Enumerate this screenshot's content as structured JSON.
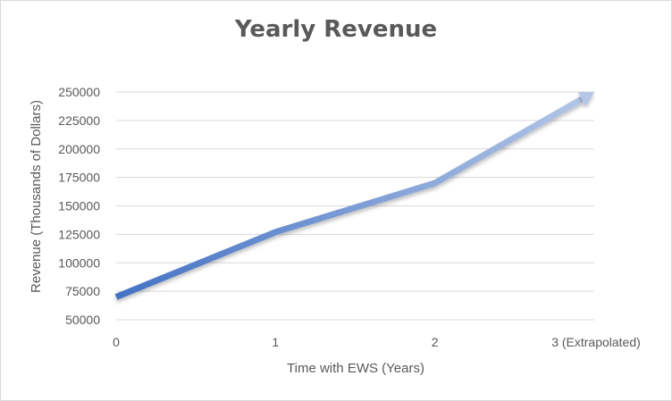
{
  "chart_data": {
    "type": "line",
    "title": "Yearly Revenue",
    "xlabel": "Time with EWS (Years)",
    "ylabel": "Revenue (Thousands of Dollars)",
    "categories": [
      "0",
      "1",
      "2",
      "3 (Extrapolated)"
    ],
    "x": [
      0,
      1,
      2,
      3
    ],
    "series": [
      {
        "values": [
          70000,
          127000,
          170000,
          250000
        ]
      }
    ],
    "ylim": [
      50000,
      250000
    ],
    "yticks": [
      50000,
      75000,
      100000,
      125000,
      150000,
      175000,
      200000,
      225000,
      250000
    ],
    "grid": true,
    "legend": "none",
    "colors": {
      "line_start": "#4472c4",
      "line_end": "#b4c7e7",
      "grid": "#d9d9d9",
      "text": "#595959"
    }
  }
}
